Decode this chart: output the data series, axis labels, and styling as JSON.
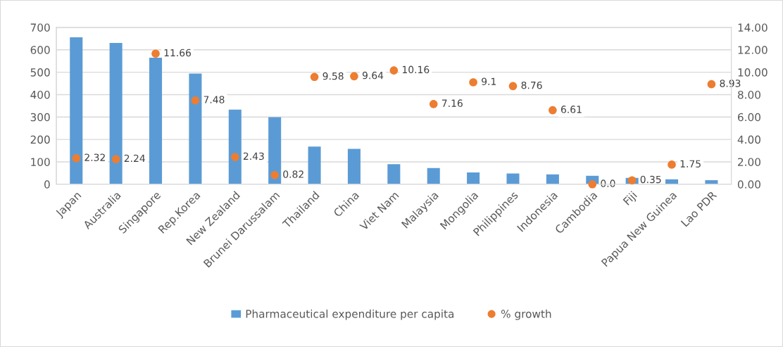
{
  "chart_data": {
    "type": "bar",
    "categories": [
      "Japan",
      "Australia",
      "Singapore",
      "Rep.Korea",
      "New Zealand",
      "Brunei Darussalam",
      "Thailand",
      "China",
      "Viet Nam",
      "Malaysia",
      "Mongolia",
      "Philippines",
      "Indonesia",
      "Cambodia",
      "Fiji",
      "Papua New Guinea",
      "Lao PDR"
    ],
    "series": [
      {
        "name": "Pharmaceutical expenditure per capita",
        "color": "#5b9bd5",
        "values": [
          656,
          631,
          565,
          494,
          333,
          299,
          168,
          158,
          90,
          72,
          53,
          48,
          44,
          38,
          28,
          22,
          18
        ]
      },
      {
        "name": "% growth",
        "type": "scatter",
        "axis": "y2",
        "marker": "circle",
        "color": "#ed7d31",
        "values": [
          2.32,
          2.24,
          11.66,
          7.48,
          2.43,
          0.82,
          9.58,
          9.64,
          10.16,
          7.16,
          9.1,
          8.76,
          6.61,
          0.0,
          0.35,
          1.75,
          8.93
        ],
        "value_labels": [
          "2.32",
          "2.24",
          "11.66",
          "7.48",
          "2.43",
          "0.82",
          "9.58",
          "9.64",
          "10.16",
          "7.16",
          "9.1",
          "8.76",
          "6.61",
          "0.0",
          "0.35",
          "1.75",
          "8.93"
        ]
      }
    ],
    "ylim": [
      0,
      700
    ],
    "yticks": [
      0,
      100,
      200,
      300,
      400,
      500,
      600,
      700
    ],
    "y2lim": [
      0,
      14
    ],
    "y2ticks": [
      {
        "value": 0,
        "label": "0.00"
      },
      {
        "value": 2,
        "label": "2.00"
      },
      {
        "value": 4,
        "label": "4.00"
      },
      {
        "value": 6,
        "label": "6.00"
      },
      {
        "value": 8,
        "label": "8.00"
      },
      {
        "value": 10,
        "label": "10.00"
      },
      {
        "value": 12,
        "label": "12.00"
      },
      {
        "value": 14,
        "label": "14.00"
      }
    ],
    "grid": "y",
    "legend": "bottom"
  }
}
